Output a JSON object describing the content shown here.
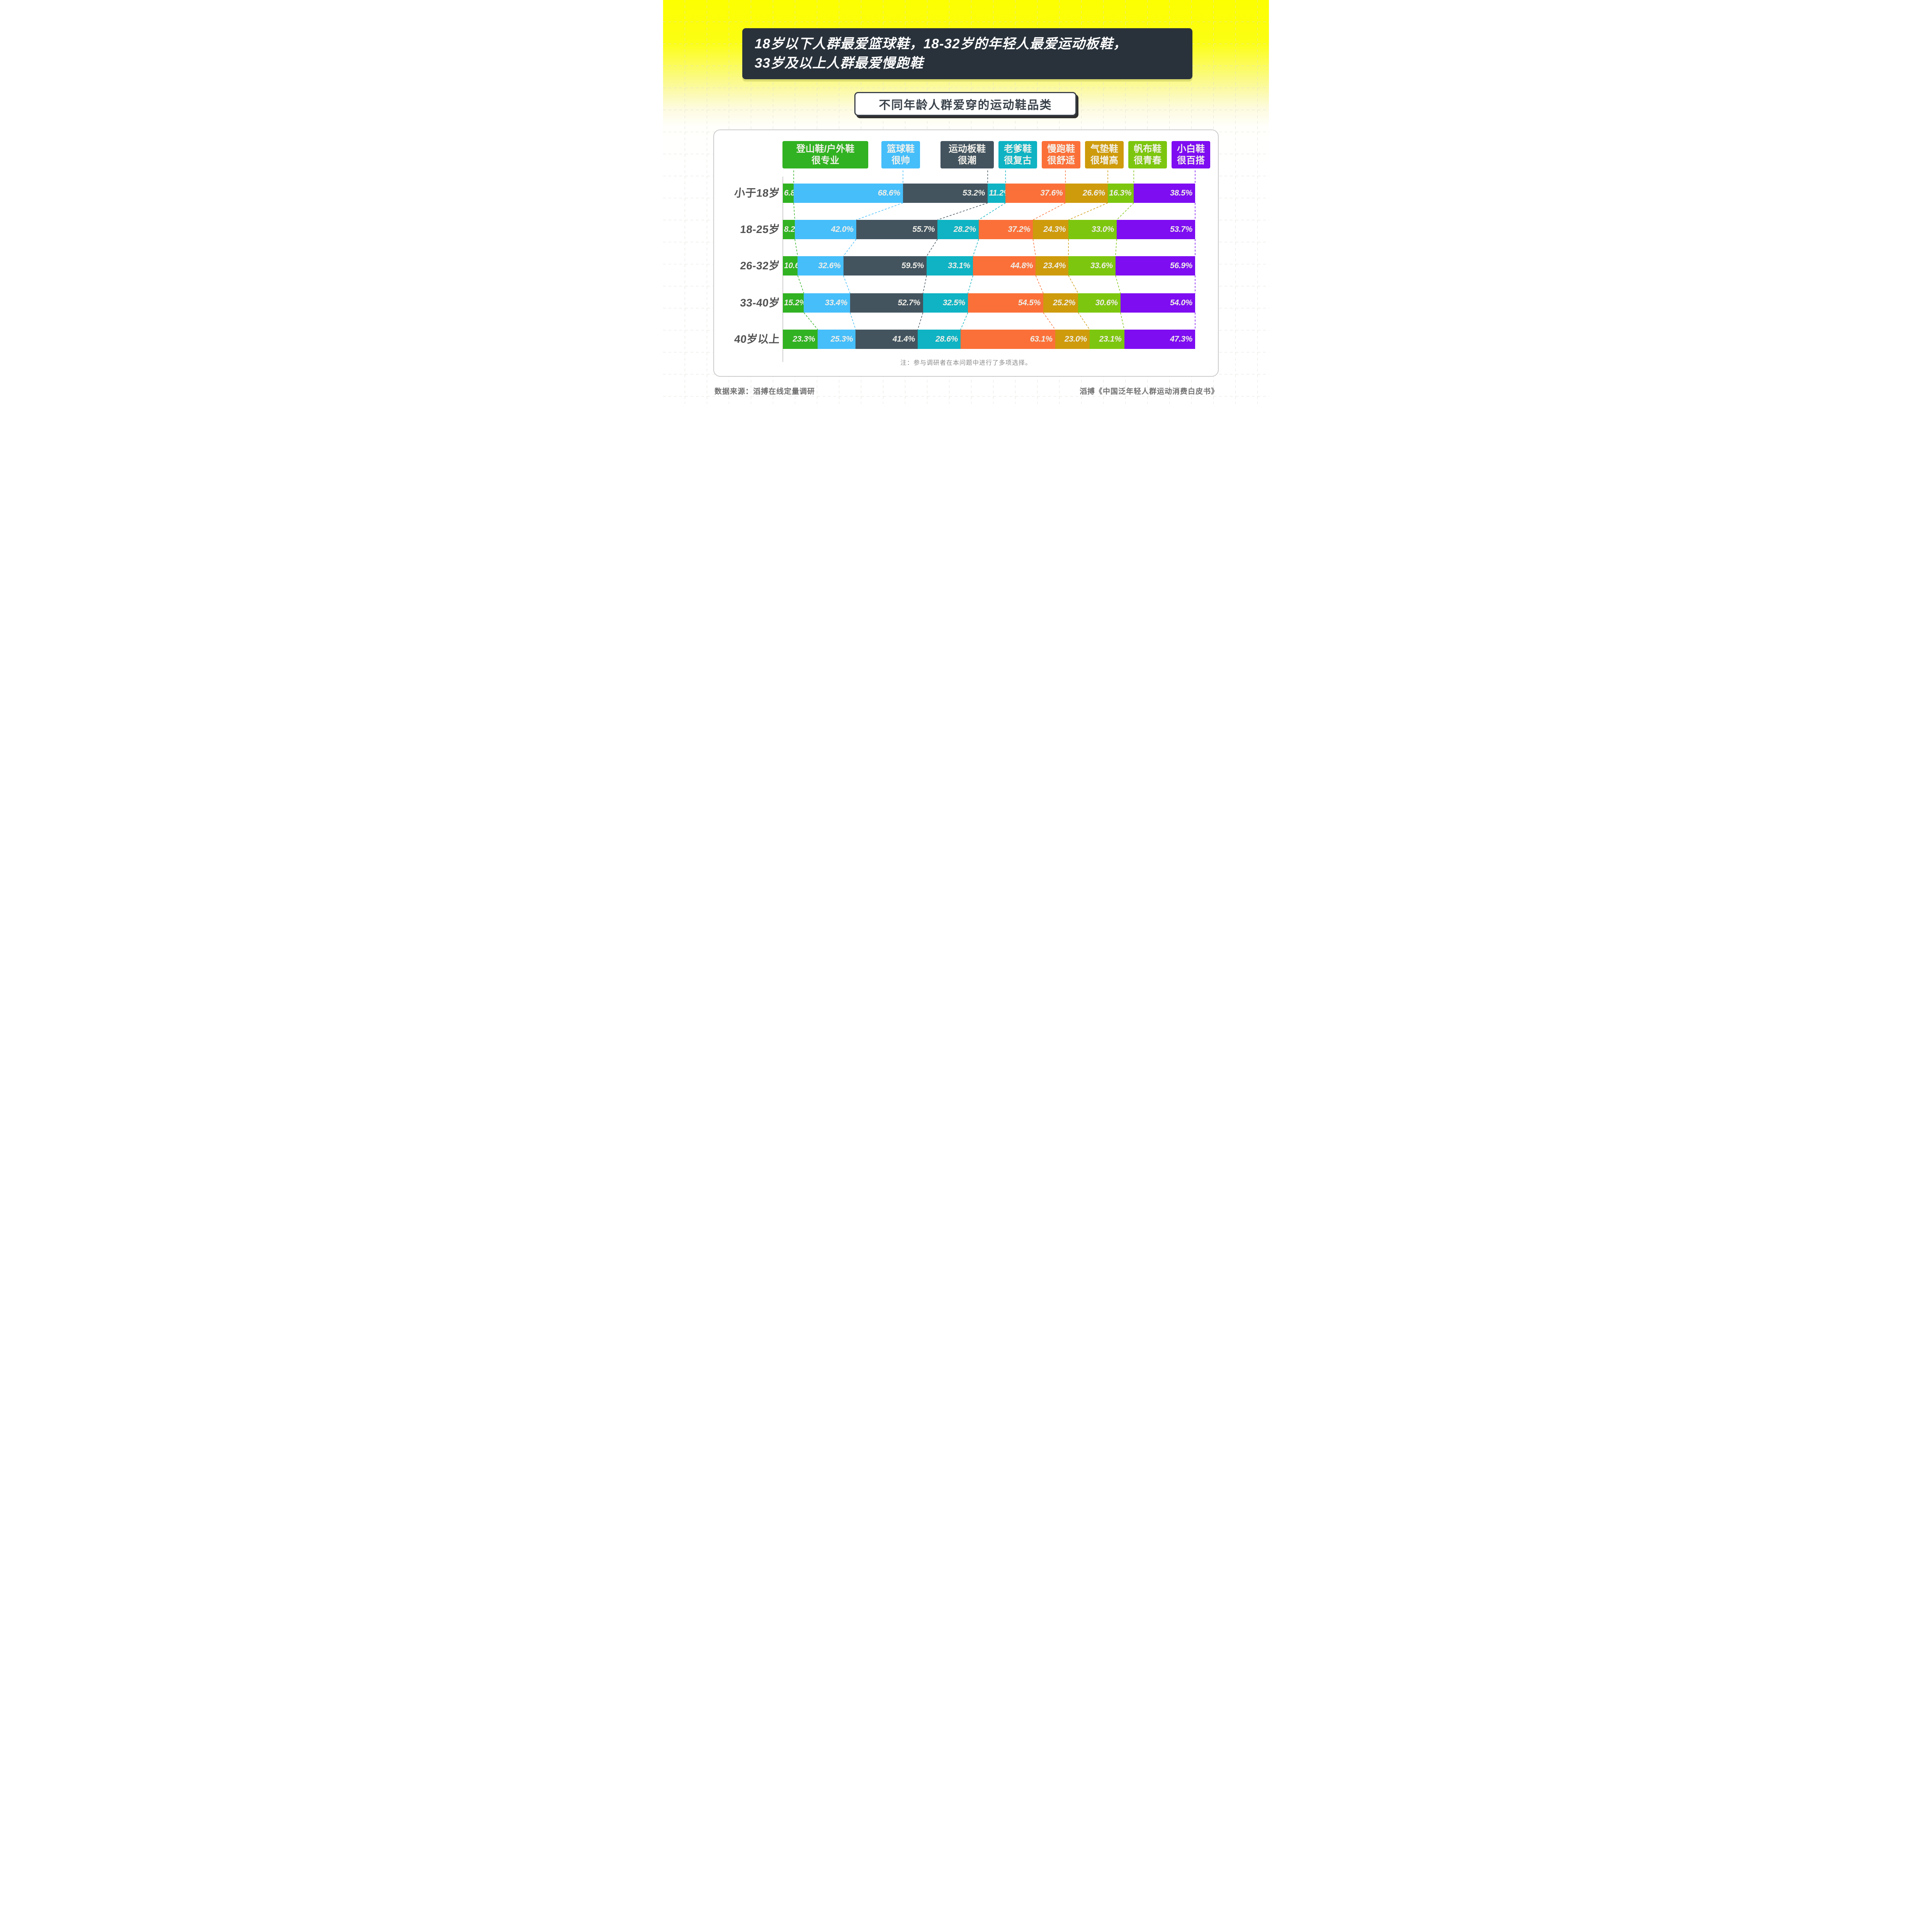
{
  "header": {
    "title_line1": "18岁以下人群最爱篮球鞋，18-32岁的年轻人最爱运动板鞋，",
    "title_line2": "33岁及以上人群最爱慢跑鞋"
  },
  "chart_data": {
    "type": "bar",
    "subtype": "horizontal-100-percent-stacked",
    "title": "不同年龄人群爱穿的运动鞋品类",
    "unit": "%",
    "legend_position": "top",
    "grid": false,
    "categories": [
      "小于18岁",
      "18-25岁",
      "26-32岁",
      "33-40岁",
      "40岁以上"
    ],
    "series": [
      {
        "name": "登山鞋/户外鞋很专业",
        "label_lines": [
          "登山鞋/户外鞋",
          "很专业"
        ],
        "color": "#31B222",
        "values": [
          6.8,
          8.2,
          10.6,
          15.2,
          23.3
        ]
      },
      {
        "name": "篮球鞋很帅",
        "label_lines": [
          "篮球鞋",
          "很帅"
        ],
        "color": "#45BEFA",
        "values": [
          68.6,
          42.0,
          32.6,
          33.4,
          25.3
        ]
      },
      {
        "name": "运动板鞋很潮",
        "label_lines": [
          "运动板鞋",
          "很潮"
        ],
        "color": "#43545F",
        "values": [
          53.2,
          55.7,
          59.5,
          52.7,
          41.4
        ]
      },
      {
        "name": "老爹鞋很复古",
        "label_lines": [
          "老爹鞋",
          "很复古"
        ],
        "color": "#0FB3C3",
        "values": [
          11.2,
          28.2,
          33.1,
          32.5,
          28.6
        ]
      },
      {
        "name": "慢跑鞋很舒适",
        "label_lines": [
          "慢跑鞋",
          "很舒适"
        ],
        "color": "#FB7039",
        "values": [
          37.6,
          37.2,
          44.8,
          54.5,
          63.1
        ]
      },
      {
        "name": "气垫鞋很增高",
        "label_lines": [
          "气垫鞋",
          "很增高"
        ],
        "color": "#CE9B0C",
        "values": [
          26.6,
          24.3,
          23.4,
          25.2,
          23.0
        ]
      },
      {
        "name": "帆布鞋很青春",
        "label_lines": [
          "帆布鞋",
          "很青春"
        ],
        "color": "#7DC60F",
        "values": [
          16.3,
          33.0,
          33.6,
          30.6,
          23.1
        ]
      },
      {
        "name": "小白鞋很百搭",
        "label_lines": [
          "小白鞋",
          "很百搭"
        ],
        "color": "#7E0DF2",
        "values": [
          38.5,
          53.7,
          56.9,
          54.0,
          47.3
        ]
      }
    ],
    "note": "注：参与调研者在本问题中进行了多项选择。"
  },
  "footer": {
    "source_left": "数据来源：滔搏在线定量调研",
    "source_right": "滔搏《中国泛年轻人群运动消费白皮书》"
  },
  "style": {
    "title_bg": "#29323B",
    "page_top_yellow": "#FCFF00",
    "value_label_color": "#EFEEE8",
    "row_label_color": "#525252"
  }
}
